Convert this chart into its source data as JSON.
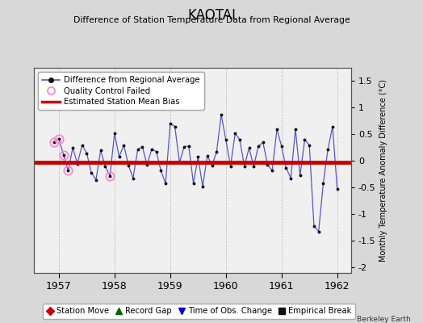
{
  "title": "KAOTAI",
  "subtitle": "Difference of Station Temperature Data from Regional Average",
  "ylabel": "Monthly Temperature Anomaly Difference (°C)",
  "attribution": "Berkeley Earth",
  "ylim": [
    -2.1,
    1.75
  ],
  "yticks": [
    -2,
    -1.5,
    -1,
    -0.5,
    0,
    0.5,
    1,
    1.5
  ],
  "xlim": [
    1956.55,
    1962.25
  ],
  "xticks": [
    1957,
    1958,
    1959,
    1960,
    1961,
    1962
  ],
  "bias_start": 1956.55,
  "bias_end": 1962.25,
  "bias_value": -0.02,
  "line_color": "#5555cc",
  "bias_color": "#cc0000",
  "marker_color": "#111111",
  "qc_fail_color": "#ff88cc",
  "background_color": "#d8d8d8",
  "plot_bg_color": "#f0f0f0",
  "grid_color": "#bbbbbb",
  "months": [
    1956.917,
    1957.0,
    1957.083,
    1957.167,
    1957.25,
    1957.333,
    1957.417,
    1957.5,
    1957.583,
    1957.667,
    1957.75,
    1957.833,
    1957.917,
    1958.0,
    1958.083,
    1958.167,
    1958.25,
    1958.333,
    1958.417,
    1958.5,
    1958.583,
    1958.667,
    1958.75,
    1958.833,
    1958.917,
    1959.0,
    1959.083,
    1959.167,
    1959.25,
    1959.333,
    1959.417,
    1959.5,
    1959.583,
    1959.667,
    1959.75,
    1959.833,
    1959.917,
    1960.0,
    1960.083,
    1960.167,
    1960.25,
    1960.333,
    1960.417,
    1960.5,
    1960.583,
    1960.667,
    1960.75,
    1960.833,
    1960.917,
    1961.0,
    1961.083,
    1961.167,
    1961.25,
    1961.333,
    1961.417,
    1961.5,
    1961.583,
    1961.667,
    1961.75,
    1961.833,
    1961.917,
    1962.0
  ],
  "values": [
    0.35,
    0.42,
    0.12,
    -0.18,
    0.25,
    -0.05,
    0.3,
    0.15,
    -0.22,
    -0.35,
    0.2,
    -0.1,
    -0.28,
    0.52,
    0.08,
    0.3,
    -0.08,
    -0.32,
    0.22,
    0.27,
    -0.07,
    0.22,
    0.18,
    -0.18,
    -0.42,
    0.7,
    0.65,
    -0.03,
    0.27,
    0.28,
    -0.42,
    0.08,
    -0.48,
    0.1,
    -0.08,
    0.17,
    0.87,
    0.4,
    -0.1,
    0.52,
    0.4,
    -0.1,
    0.25,
    -0.1,
    0.28,
    0.35,
    -0.07,
    -0.18,
    0.6,
    0.28,
    -0.13,
    -0.32,
    0.6,
    -0.27,
    0.4,
    0.3,
    -1.22,
    -1.32,
    -0.42,
    0.22,
    0.65,
    -0.52
  ],
  "qc_fail_indices": [
    0,
    1,
    2,
    3,
    12
  ],
  "bottom_legend": [
    {
      "label": "Station Move",
      "marker": "D",
      "color": "#cc0000"
    },
    {
      "label": "Record Gap",
      "marker": "^",
      "color": "#006600"
    },
    {
      "label": "Time of Obs. Change",
      "marker": "v",
      "color": "#0000cc"
    },
    {
      "label": "Empirical Break",
      "marker": "s",
      "color": "#111111"
    }
  ]
}
